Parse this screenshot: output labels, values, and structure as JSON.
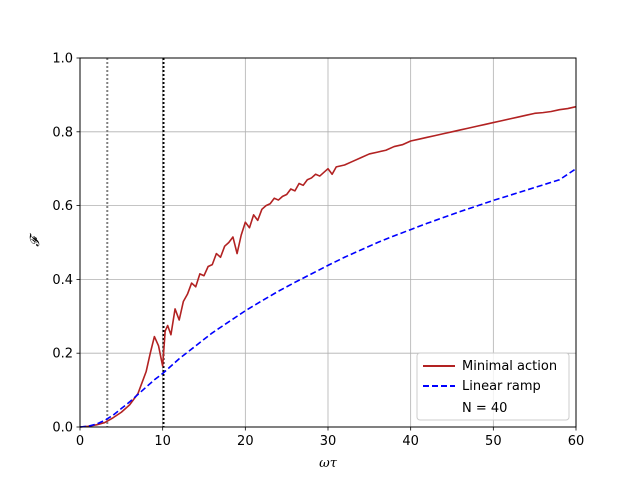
{
  "chart_data": {
    "type": "line",
    "xlabel": "ωτ",
    "ylabel": "𝓕",
    "xlim": [
      0,
      60
    ],
    "ylim": [
      0,
      1
    ],
    "xticks": [
      0,
      10,
      20,
      30,
      40,
      50,
      60
    ],
    "yticks": [
      0.0,
      0.2,
      0.4,
      0.6,
      0.8,
      1.0
    ],
    "xtick_labels": [
      "0",
      "10",
      "20",
      "30",
      "40",
      "50",
      "60"
    ],
    "ytick_labels": [
      "0.0",
      "0.2",
      "0.4",
      "0.6",
      "0.8",
      "1.0"
    ],
    "grid": true,
    "legend_position": "lower-right",
    "legend_note": "N = 40",
    "vertical_lines": [
      {
        "x": 3.3,
        "style": "dotted",
        "color": "#808080"
      },
      {
        "x": 10.1,
        "style": "dotted",
        "color": "#000000"
      }
    ],
    "series": [
      {
        "name": "Minimal action",
        "color": "#b22222",
        "dash": "solid",
        "x": [
          0,
          1,
          2,
          3,
          4,
          5,
          6,
          7,
          8,
          8.5,
          9,
          9.5,
          10,
          10.3,
          10.6,
          11,
          11.5,
          12,
          12.5,
          13,
          13.5,
          14,
          14.5,
          15,
          15.5,
          16,
          16.5,
          17,
          17.5,
          18,
          18.5,
          19,
          19.5,
          20,
          20.5,
          21,
          21.5,
          22,
          22.5,
          23,
          23.5,
          24,
          24.5,
          25,
          25.5,
          26,
          26.5,
          27,
          27.5,
          28,
          28.5,
          29,
          30,
          30.5,
          31,
          32,
          33,
          34,
          35,
          36,
          37,
          38,
          39,
          40,
          41,
          42,
          43,
          44,
          45,
          46,
          47,
          48,
          49,
          50,
          51,
          52,
          53,
          54,
          55,
          56,
          57,
          58,
          59,
          60
        ],
        "y": [
          0.0,
          0.002,
          0.006,
          0.012,
          0.025,
          0.04,
          0.06,
          0.09,
          0.15,
          0.2,
          0.245,
          0.22,
          0.165,
          0.26,
          0.275,
          0.25,
          0.32,
          0.29,
          0.34,
          0.36,
          0.39,
          0.38,
          0.415,
          0.41,
          0.435,
          0.44,
          0.47,
          0.46,
          0.49,
          0.5,
          0.515,
          0.47,
          0.52,
          0.555,
          0.54,
          0.575,
          0.56,
          0.59,
          0.6,
          0.605,
          0.62,
          0.615,
          0.625,
          0.63,
          0.645,
          0.64,
          0.66,
          0.655,
          0.67,
          0.675,
          0.685,
          0.68,
          0.7,
          0.685,
          0.705,
          0.71,
          0.72,
          0.73,
          0.74,
          0.745,
          0.75,
          0.76,
          0.765,
          0.775,
          0.78,
          0.785,
          0.79,
          0.795,
          0.8,
          0.805,
          0.81,
          0.815,
          0.82,
          0.825,
          0.83,
          0.835,
          0.84,
          0.845,
          0.85,
          0.852,
          0.855,
          0.86,
          0.863,
          0.868
        ]
      },
      {
        "name": "Linear ramp",
        "color": "#0000ff",
        "dash": "dashed",
        "x": [
          0,
          1,
          2,
          3,
          4,
          5,
          6,
          7,
          8,
          9,
          10,
          12,
          14,
          16,
          18,
          20,
          22,
          24,
          26,
          28,
          30,
          32,
          34,
          36,
          38,
          40,
          42,
          44,
          46,
          48,
          50,
          52,
          54,
          56,
          58,
          60
        ],
        "y": [
          0.0,
          0.002,
          0.008,
          0.018,
          0.032,
          0.05,
          0.068,
          0.088,
          0.108,
          0.128,
          0.145,
          0.185,
          0.22,
          0.255,
          0.285,
          0.315,
          0.342,
          0.368,
          0.392,
          0.415,
          0.438,
          0.46,
          0.48,
          0.5,
          0.518,
          0.535,
          0.552,
          0.568,
          0.584,
          0.599,
          0.614,
          0.628,
          0.642,
          0.656,
          0.67,
          0.7
        ]
      }
    ]
  }
}
